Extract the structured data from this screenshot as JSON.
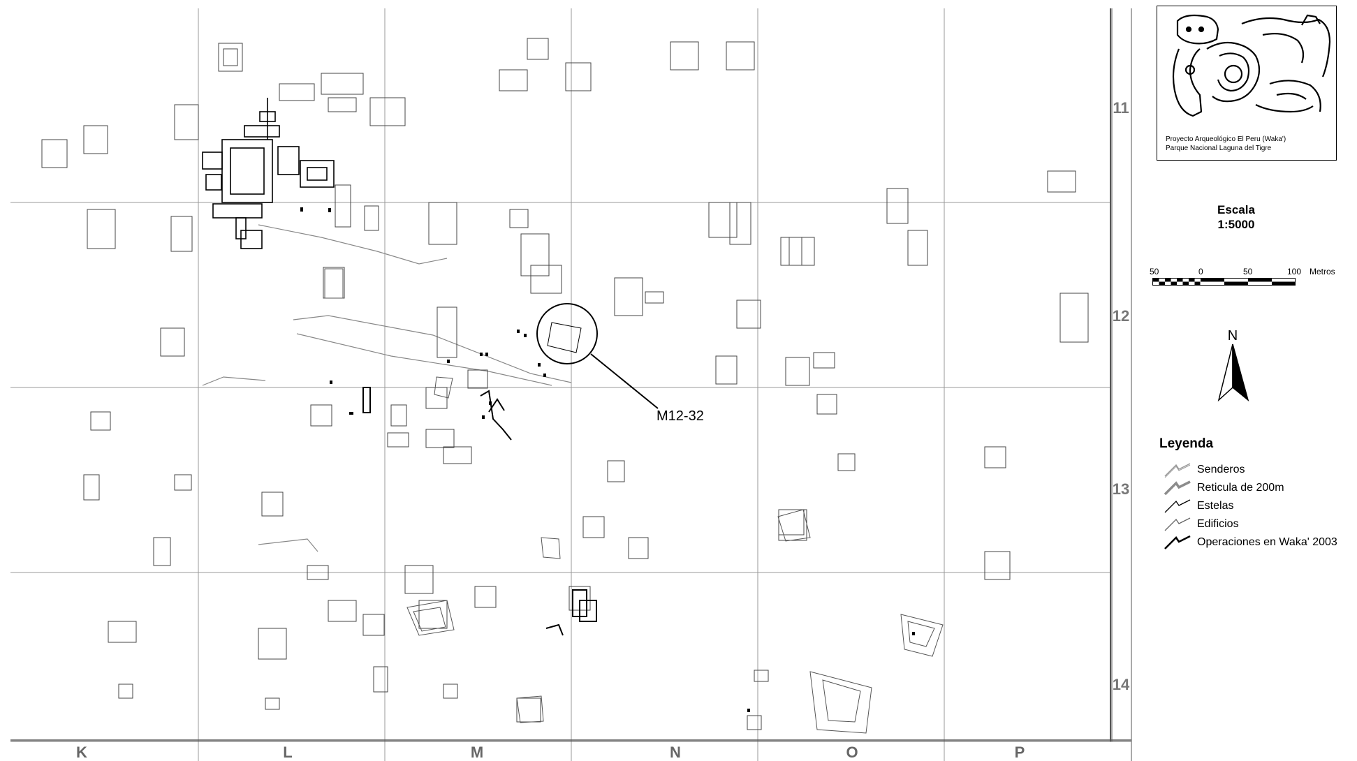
{
  "map": {
    "grid_columns": [
      "K",
      "L",
      "M",
      "N",
      "O",
      "P"
    ],
    "grid_rows": [
      "11",
      "12",
      "13",
      "14"
    ],
    "callout_label": "M12-32"
  },
  "logo": {
    "caption_line1": "Proyecto Arqueológico El Peru (Waka')",
    "caption_line2": "Parque Nacional Laguna del Tigre"
  },
  "scale": {
    "title_line1": "Escala",
    "title_line2": "1:5000",
    "ticks": [
      "50",
      "0",
      "50",
      "100"
    ],
    "unit": "Metros"
  },
  "north_arrow": {
    "label": "N"
  },
  "legend": {
    "title": "Leyenda",
    "items": [
      {
        "label": "Senderos",
        "icon": "path-trail-icon",
        "color": "#9a9a9a"
      },
      {
        "label": "Reticula de 200m",
        "icon": "grid-line-icon",
        "color": "#8c8c8c"
      },
      {
        "label": "Estelas",
        "icon": "stela-icon",
        "color": "#000000"
      },
      {
        "label": "Edificios",
        "icon": "building-icon",
        "color": "#666666"
      },
      {
        "label": "Operaciones en Waka' 2003",
        "icon": "operations-icon",
        "color": "#000000"
      }
    ]
  }
}
